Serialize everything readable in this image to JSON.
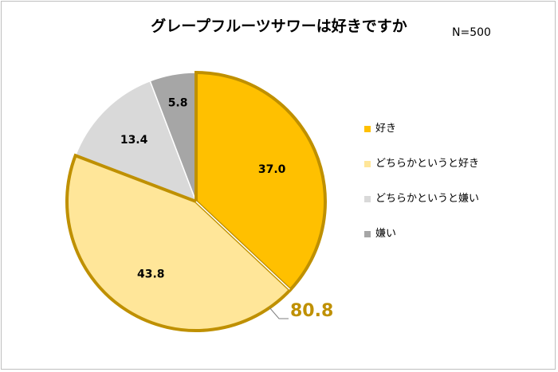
{
  "title": "グレープフルーツサワーは好きですか",
  "sample": "N=500",
  "combined_label": "80.8",
  "chart_data": {
    "type": "pie",
    "title": "グレープフルーツサワーは好きですか",
    "note": "N=500",
    "start": "12 o'clock",
    "direction": "clockwise",
    "slices": [
      {
        "label": "好き",
        "value": 37.0,
        "color": "#ffc000"
      },
      {
        "label": "どちらかというと好き",
        "value": 43.8,
        "color": "#ffe699"
      },
      {
        "label": "どちらかというと嫌い",
        "value": 13.4,
        "color": "#d9d9d9"
      },
      {
        "label": "嫌い",
        "value": 5.8,
        "color": "#a6a6a6"
      }
    ],
    "highlight": {
      "slices": [
        "好き",
        "どちらかというと好き"
      ],
      "value": 80.8,
      "outline_color": "#bf9000"
    },
    "data_label_format": "0.0",
    "legend_position": "right"
  }
}
